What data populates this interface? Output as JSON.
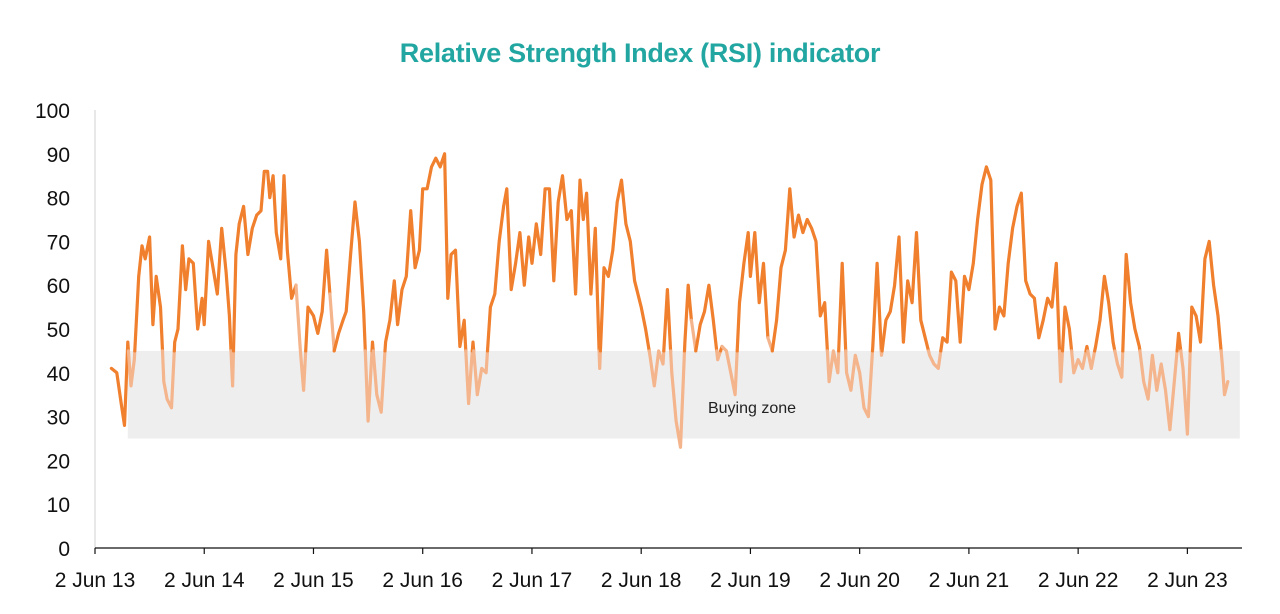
{
  "chart_data": {
    "type": "line",
    "title": "Relative Strength Index (RSI) indicator",
    "xlabel": "",
    "ylabel": "",
    "ylim": [
      0,
      100
    ],
    "yticks": [
      0,
      10,
      20,
      30,
      40,
      50,
      60,
      70,
      80,
      90,
      100
    ],
    "x_range": [
      2013.0,
      2023.5
    ],
    "xticks": [
      {
        "value": 2013.0,
        "label": "2 Jun 13"
      },
      {
        "value": 2014.0,
        "label": "2 Jun 14"
      },
      {
        "value": 2015.0,
        "label": "2 Jun 15"
      },
      {
        "value": 2016.0,
        "label": "2 Jun 16"
      },
      {
        "value": 2017.0,
        "label": "2 Jun 17"
      },
      {
        "value": 2018.0,
        "label": "2 Jun 18"
      },
      {
        "value": 2019.0,
        "label": "2 Jun 19"
      },
      {
        "value": 2020.0,
        "label": "2 Jun 20"
      },
      {
        "value": 2021.0,
        "label": "2 Jun 21"
      },
      {
        "value": 2022.0,
        "label": "2 Jun 22"
      },
      {
        "value": 2023.0,
        "label": "2 Jun 23"
      }
    ],
    "grid": false,
    "legend": "none",
    "band": {
      "label": "Buying zone",
      "y_from": 25,
      "y_to": 45,
      "x_from": 2013.3,
      "x_to": 2023.48,
      "color": "#EEEEEE"
    },
    "series": [
      {
        "name": "",
        "color": "#F07F2E",
        "band_color": "#F4B48C",
        "points": [
          [
            2013.15,
            41
          ],
          [
            2013.2,
            40
          ],
          [
            2013.24,
            33
          ],
          [
            2013.27,
            28
          ],
          [
            2013.3,
            47
          ],
          [
            2013.33,
            37
          ],
          [
            2013.36,
            43
          ],
          [
            2013.4,
            62
          ],
          [
            2013.43,
            69
          ],
          [
            2013.46,
            66
          ],
          [
            2013.5,
            71
          ],
          [
            2013.53,
            51
          ],
          [
            2013.56,
            62
          ],
          [
            2013.6,
            55
          ],
          [
            2013.63,
            38
          ],
          [
            2013.66,
            34
          ],
          [
            2013.7,
            32
          ],
          [
            2013.73,
            47
          ],
          [
            2013.76,
            50
          ],
          [
            2013.8,
            69
          ],
          [
            2013.83,
            59
          ],
          [
            2013.86,
            66
          ],
          [
            2013.9,
            65
          ],
          [
            2013.94,
            50
          ],
          [
            2013.98,
            57
          ],
          [
            2014.0,
            51
          ],
          [
            2014.04,
            70
          ],
          [
            2014.08,
            64
          ],
          [
            2014.12,
            58
          ],
          [
            2014.16,
            73
          ],
          [
            2014.2,
            63
          ],
          [
            2014.23,
            53
          ],
          [
            2014.26,
            37
          ],
          [
            2014.29,
            67
          ],
          [
            2014.32,
            74
          ],
          [
            2014.36,
            78
          ],
          [
            2014.4,
            67
          ],
          [
            2014.44,
            73
          ],
          [
            2014.48,
            76
          ],
          [
            2014.52,
            77
          ],
          [
            2014.55,
            86
          ],
          [
            2014.58,
            86
          ],
          [
            2014.6,
            80
          ],
          [
            2014.63,
            85
          ],
          [
            2014.66,
            72
          ],
          [
            2014.7,
            66
          ],
          [
            2014.73,
            85
          ],
          [
            2014.76,
            68
          ],
          [
            2014.8,
            57
          ],
          [
            2014.84,
            60
          ],
          [
            2014.88,
            45
          ],
          [
            2014.91,
            36
          ],
          [
            2014.95,
            55
          ],
          [
            2015.0,
            53
          ],
          [
            2015.04,
            49
          ],
          [
            2015.08,
            54
          ],
          [
            2015.12,
            68
          ],
          [
            2015.15,
            58
          ],
          [
            2015.19,
            45
          ],
          [
            2015.23,
            49
          ],
          [
            2015.27,
            52
          ],
          [
            2015.3,
            54
          ],
          [
            2015.34,
            67
          ],
          [
            2015.38,
            79
          ],
          [
            2015.42,
            70
          ],
          [
            2015.46,
            54
          ],
          [
            2015.5,
            29
          ],
          [
            2015.54,
            47
          ],
          [
            2015.58,
            35
          ],
          [
            2015.62,
            31
          ],
          [
            2015.66,
            47
          ],
          [
            2015.7,
            52
          ],
          [
            2015.74,
            61
          ],
          [
            2015.77,
            51
          ],
          [
            2015.81,
            59
          ],
          [
            2015.85,
            62
          ],
          [
            2015.89,
            77
          ],
          [
            2015.93,
            64
          ],
          [
            2015.97,
            68
          ],
          [
            2016.0,
            82
          ],
          [
            2016.04,
            82
          ],
          [
            2016.08,
            87
          ],
          [
            2016.12,
            89
          ],
          [
            2016.16,
            87
          ],
          [
            2016.2,
            90
          ],
          [
            2016.23,
            57
          ],
          [
            2016.26,
            67
          ],
          [
            2016.3,
            68
          ],
          [
            2016.34,
            46
          ],
          [
            2016.38,
            52
          ],
          [
            2016.42,
            33
          ],
          [
            2016.46,
            47
          ],
          [
            2016.5,
            35
          ],
          [
            2016.54,
            41
          ],
          [
            2016.58,
            40
          ],
          [
            2016.62,
            55
          ],
          [
            2016.66,
            58
          ],
          [
            2016.7,
            70
          ],
          [
            2016.74,
            78
          ],
          [
            2016.77,
            82
          ],
          [
            2016.81,
            59
          ],
          [
            2016.85,
            65
          ],
          [
            2016.89,
            72
          ],
          [
            2016.93,
            60
          ],
          [
            2016.97,
            71
          ],
          [
            2017.0,
            65
          ],
          [
            2017.04,
            74
          ],
          [
            2017.08,
            67
          ],
          [
            2017.12,
            82
          ],
          [
            2017.16,
            82
          ],
          [
            2017.2,
            61
          ],
          [
            2017.24,
            79
          ],
          [
            2017.28,
            85
          ],
          [
            2017.32,
            75
          ],
          [
            2017.36,
            77
          ],
          [
            2017.4,
            58
          ],
          [
            2017.44,
            84
          ],
          [
            2017.47,
            75
          ],
          [
            2017.5,
            81
          ],
          [
            2017.54,
            58
          ],
          [
            2017.58,
            73
          ],
          [
            2017.62,
            41
          ],
          [
            2017.66,
            64
          ],
          [
            2017.7,
            62
          ],
          [
            2017.74,
            68
          ],
          [
            2017.78,
            79
          ],
          [
            2017.82,
            84
          ],
          [
            2017.86,
            74
          ],
          [
            2017.9,
            70
          ],
          [
            2017.94,
            61
          ],
          [
            2018.0,
            55
          ],
          [
            2018.04,
            50
          ],
          [
            2018.08,
            44
          ],
          [
            2018.12,
            37
          ],
          [
            2018.16,
            45
          ],
          [
            2018.2,
            42
          ],
          [
            2018.24,
            59
          ],
          [
            2018.28,
            40
          ],
          [
            2018.32,
            29
          ],
          [
            2018.36,
            23
          ],
          [
            2018.4,
            47
          ],
          [
            2018.43,
            60
          ],
          [
            2018.46,
            52
          ],
          [
            2018.5,
            45
          ],
          [
            2018.54,
            51
          ],
          [
            2018.58,
            54
          ],
          [
            2018.62,
            60
          ],
          [
            2018.66,
            52
          ],
          [
            2018.7,
            43
          ],
          [
            2018.74,
            46
          ],
          [
            2018.78,
            45
          ],
          [
            2018.82,
            40
          ],
          [
            2018.86,
            35
          ],
          [
            2018.9,
            56
          ],
          [
            2018.94,
            65
          ],
          [
            2018.98,
            72
          ],
          [
            2019.0,
            62
          ],
          [
            2019.04,
            72
          ],
          [
            2019.08,
            56
          ],
          [
            2019.12,
            65
          ],
          [
            2019.16,
            48
          ],
          [
            2019.2,
            45
          ],
          [
            2019.24,
            52
          ],
          [
            2019.28,
            64
          ],
          [
            2019.32,
            68
          ],
          [
            2019.36,
            82
          ],
          [
            2019.4,
            71
          ],
          [
            2019.44,
            76
          ],
          [
            2019.48,
            72
          ],
          [
            2019.52,
            75
          ],
          [
            2019.56,
            73
          ],
          [
            2019.6,
            70
          ],
          [
            2019.64,
            53
          ],
          [
            2019.68,
            56
          ],
          [
            2019.72,
            38
          ],
          [
            2019.76,
            45
          ],
          [
            2019.8,
            40
          ],
          [
            2019.84,
            65
          ],
          [
            2019.88,
            40
          ],
          [
            2019.92,
            36
          ],
          [
            2019.96,
            44
          ],
          [
            2020.0,
            40
          ],
          [
            2020.04,
            32
          ],
          [
            2020.08,
            30
          ],
          [
            2020.12,
            46
          ],
          [
            2020.16,
            65
          ],
          [
            2020.2,
            44
          ],
          [
            2020.24,
            52
          ],
          [
            2020.28,
            54
          ],
          [
            2020.32,
            60
          ],
          [
            2020.36,
            71
          ],
          [
            2020.4,
            47
          ],
          [
            2020.44,
            61
          ],
          [
            2020.48,
            56
          ],
          [
            2020.52,
            72
          ],
          [
            2020.56,
            52
          ],
          [
            2020.6,
            48
          ],
          [
            2020.64,
            44
          ],
          [
            2020.68,
            42
          ],
          [
            2020.72,
            41
          ],
          [
            2020.76,
            48
          ],
          [
            2020.8,
            47
          ],
          [
            2020.84,
            63
          ],
          [
            2020.88,
            61
          ],
          [
            2020.92,
            47
          ],
          [
            2020.96,
            62
          ],
          [
            2021.0,
            59
          ],
          [
            2021.04,
            65
          ],
          [
            2021.08,
            75
          ],
          [
            2021.12,
            83
          ],
          [
            2021.16,
            87
          ],
          [
            2021.2,
            84
          ],
          [
            2021.24,
            50
          ],
          [
            2021.28,
            55
          ],
          [
            2021.32,
            53
          ],
          [
            2021.36,
            65
          ],
          [
            2021.4,
            73
          ],
          [
            2021.44,
            78
          ],
          [
            2021.48,
            81
          ],
          [
            2021.52,
            61
          ],
          [
            2021.56,
            58
          ],
          [
            2021.6,
            57
          ],
          [
            2021.64,
            48
          ],
          [
            2021.68,
            52
          ],
          [
            2021.72,
            57
          ],
          [
            2021.76,
            55
          ],
          [
            2021.8,
            65
          ],
          [
            2021.84,
            38
          ],
          [
            2021.88,
            55
          ],
          [
            2021.92,
            50
          ],
          [
            2021.96,
            40
          ],
          [
            2022.0,
            43
          ],
          [
            2022.04,
            41
          ],
          [
            2022.08,
            46
          ],
          [
            2022.12,
            41
          ],
          [
            2022.16,
            46
          ],
          [
            2022.2,
            52
          ],
          [
            2022.24,
            62
          ],
          [
            2022.28,
            56
          ],
          [
            2022.32,
            47
          ],
          [
            2022.36,
            42
          ],
          [
            2022.4,
            39
          ],
          [
            2022.44,
            67
          ],
          [
            2022.48,
            56
          ],
          [
            2022.52,
            50
          ],
          [
            2022.56,
            46
          ],
          [
            2022.6,
            38
          ],
          [
            2022.64,
            34
          ],
          [
            2022.68,
            44
          ],
          [
            2022.72,
            36
          ],
          [
            2022.76,
            42
          ],
          [
            2022.8,
            36
          ],
          [
            2022.84,
            27
          ],
          [
            2022.88,
            38
          ],
          [
            2022.92,
            49
          ],
          [
            2022.96,
            41
          ],
          [
            2023.0,
            26
          ],
          [
            2023.04,
            55
          ],
          [
            2023.08,
            53
          ],
          [
            2023.12,
            47
          ],
          [
            2023.16,
            66
          ],
          [
            2023.2,
            70
          ],
          [
            2023.24,
            60
          ],
          [
            2023.28,
            53
          ],
          [
            2023.32,
            42
          ],
          [
            2023.34,
            35
          ],
          [
            2023.37,
            38
          ]
        ]
      }
    ]
  }
}
